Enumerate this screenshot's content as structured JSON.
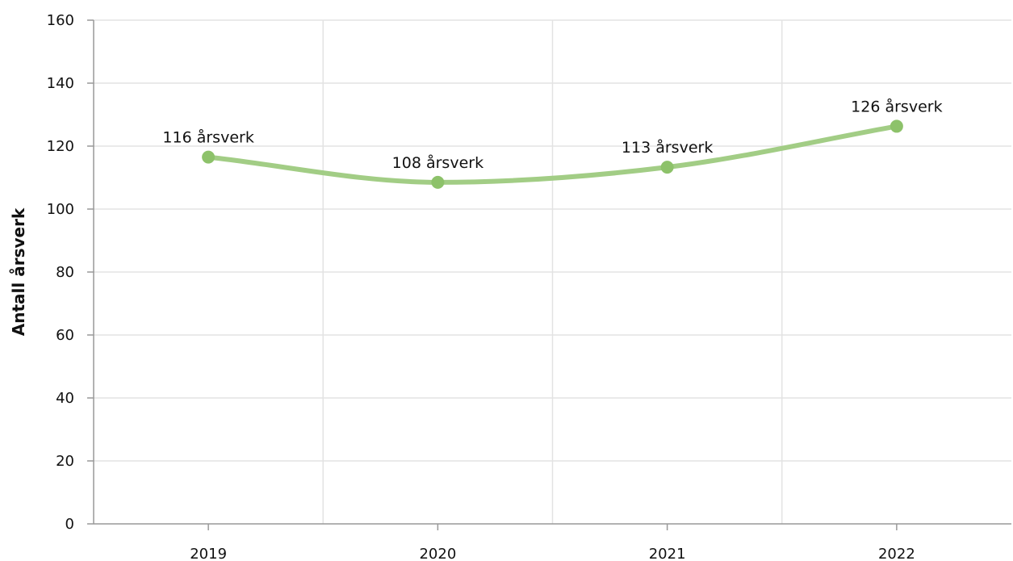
{
  "chart_data": {
    "type": "line",
    "title": "",
    "xlabel": "",
    "ylabel": "Antall årsverk",
    "categories": [
      "2019",
      "2020",
      "2021",
      "2022"
    ],
    "series": [
      {
        "values": [
          116.5,
          108.5,
          113.3,
          126.3
        ],
        "labels": [
          "116 årsverk",
          "108 årsverk",
          "113 årsverk",
          "126 årsverk"
        ],
        "color": "#8dc26a"
      }
    ],
    "ylim": [
      0,
      160
    ],
    "yticks": [
      "0",
      "20",
      "40",
      "60",
      "80",
      "100",
      "120",
      "140",
      "160"
    ],
    "grid": true,
    "smooth": true,
    "legend": "none"
  }
}
